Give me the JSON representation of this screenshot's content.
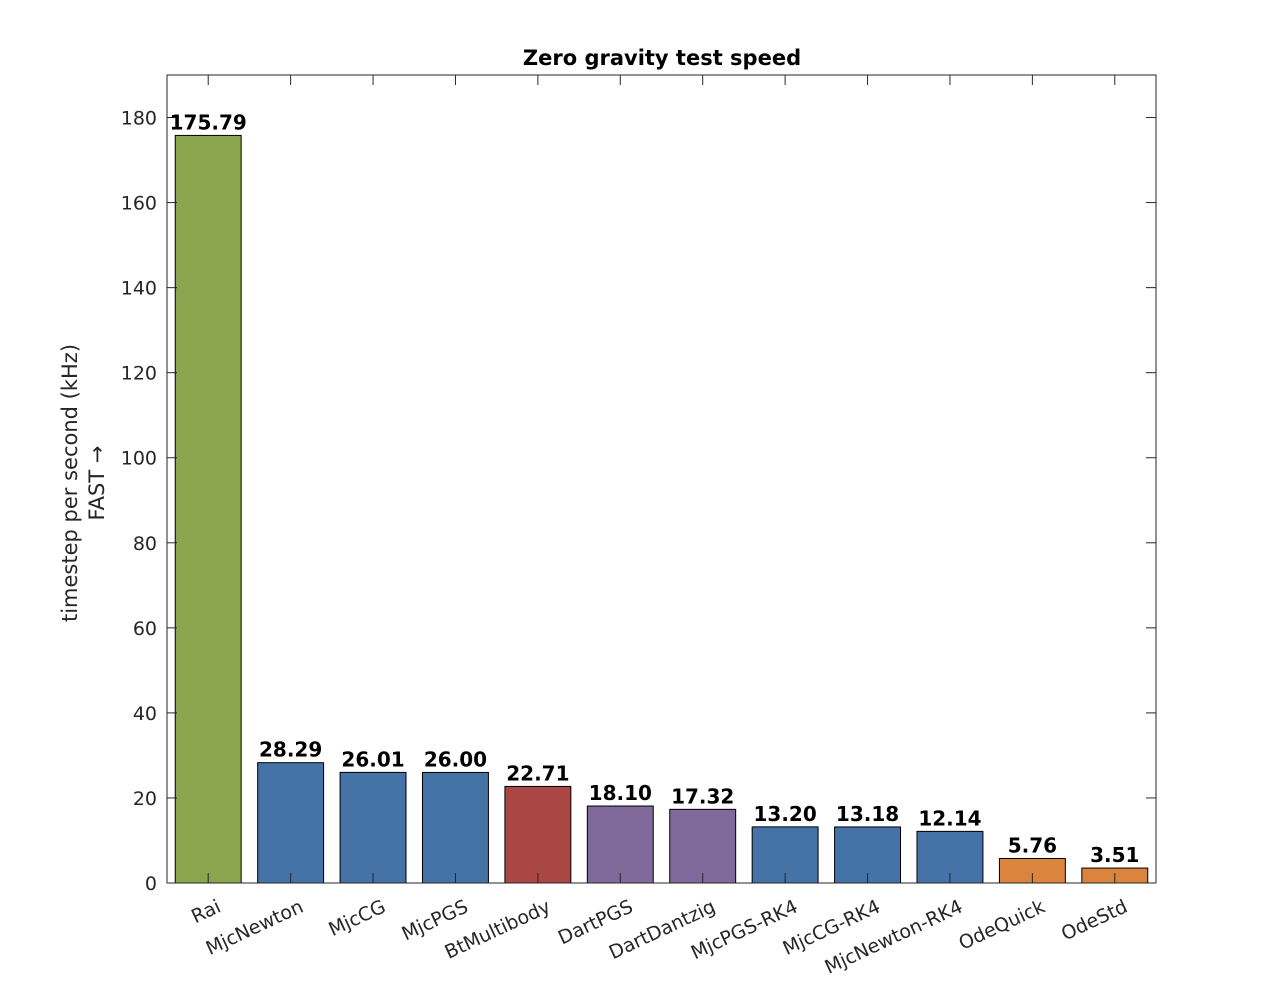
{
  "chart_data": {
    "type": "bar",
    "title": "Zero gravity test speed",
    "ylabel": "timestep per second (kHz)",
    "ylabel_line2": "FAST →",
    "xlabel": "",
    "ylim": [
      0,
      190
    ],
    "yticks": [
      0,
      20,
      40,
      60,
      80,
      100,
      120,
      140,
      160,
      180
    ],
    "grid": false,
    "categories": [
      "Rai",
      "MjcNewton",
      "MjcCG",
      "MjcPGS",
      "BtMultibody",
      "DartPGS",
      "DartDantzig",
      "MjcPGS-RK4",
      "MjcCG-RK4",
      "MjcNewton-RK4",
      "OdeQuick",
      "OdeStd"
    ],
    "values": [
      175.79,
      28.29,
      26.01,
      26.0,
      22.71,
      18.1,
      17.32,
      13.2,
      13.18,
      12.14,
      5.76,
      3.51
    ],
    "value_labels": [
      "175.79",
      "28.29",
      "26.01",
      "26.00",
      "22.71",
      "18.10",
      "17.32",
      "13.20",
      "13.18",
      "12.14",
      "5.76",
      "3.51"
    ],
    "colors": [
      "#89a54e",
      "#4572a7",
      "#4572a7",
      "#4572a7",
      "#aa4643",
      "#80699b",
      "#80699b",
      "#4572a7",
      "#4572a7",
      "#4572a7",
      "#db843d",
      "#db843d"
    ]
  }
}
